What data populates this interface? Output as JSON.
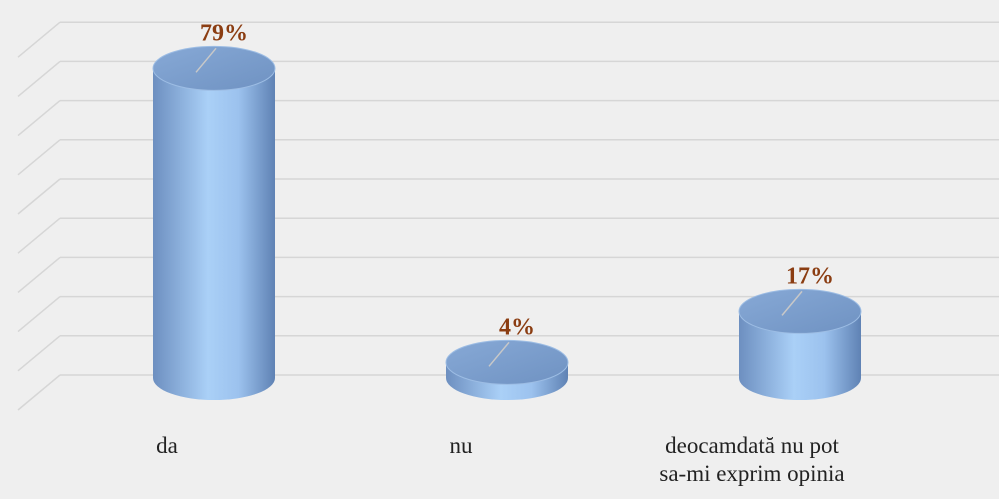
{
  "chart_data": {
    "type": "cylinder",
    "categories": [
      "da",
      "nu",
      "deocamdată nu pot\nsa-mi exprim opinia"
    ],
    "values": [
      79,
      4,
      17
    ],
    "value_labels": [
      "79%",
      "4%",
      "17%"
    ],
    "color": "#8fb4e3",
    "ylim": [
      0,
      90
    ],
    "yticks": [
      0,
      10,
      20,
      30,
      40,
      50,
      60,
      70,
      80,
      90
    ],
    "grid": true
  }
}
